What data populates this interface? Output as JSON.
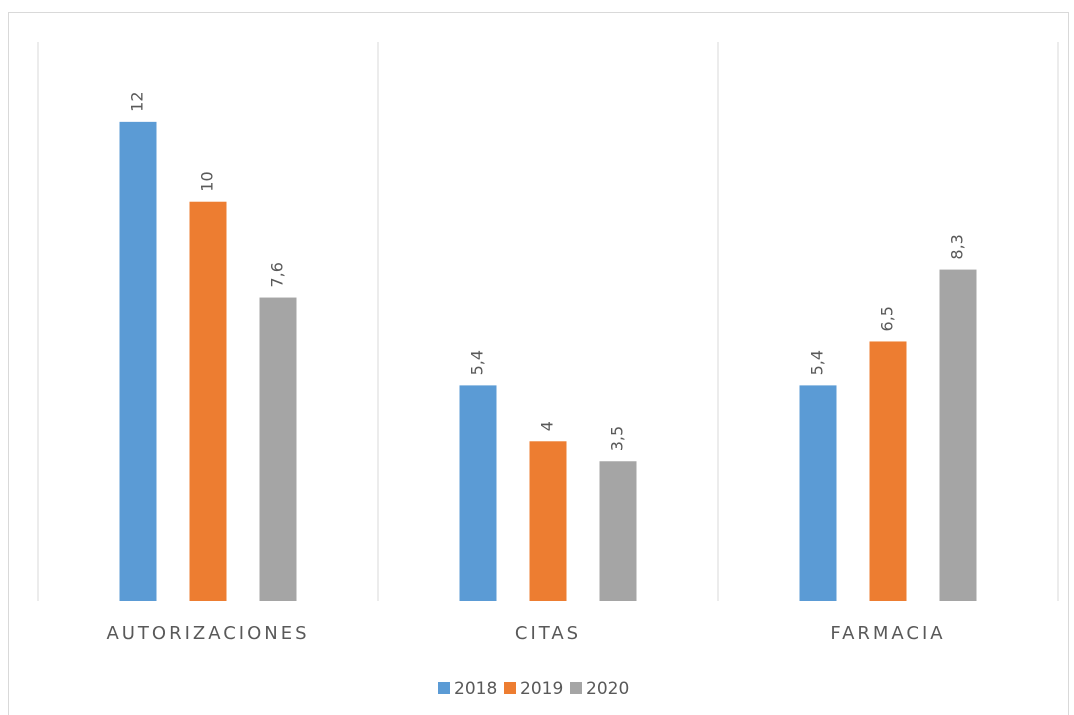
{
  "chart_data": {
    "type": "bar",
    "categories": [
      "AUTORIZACIONES",
      "CITAS",
      "FARMACIA"
    ],
    "series": [
      {
        "name": "2018",
        "color": "#5b9bd5",
        "values": [
          12,
          5.4,
          5.4
        ],
        "value_labels": [
          "12",
          "5,4",
          "5,4"
        ]
      },
      {
        "name": "2019",
        "color": "#ed7d31",
        "values": [
          10,
          4,
          6.5
        ],
        "value_labels": [
          "10",
          "4",
          "6,5"
        ]
      },
      {
        "name": "2020",
        "color": "#a5a5a5",
        "values": [
          7.6,
          3.5,
          8.3
        ],
        "value_labels": [
          "7,6",
          "3,5",
          "8,3"
        ]
      }
    ],
    "ylim": [
      0,
      14
    ],
    "legend": "bottom"
  }
}
